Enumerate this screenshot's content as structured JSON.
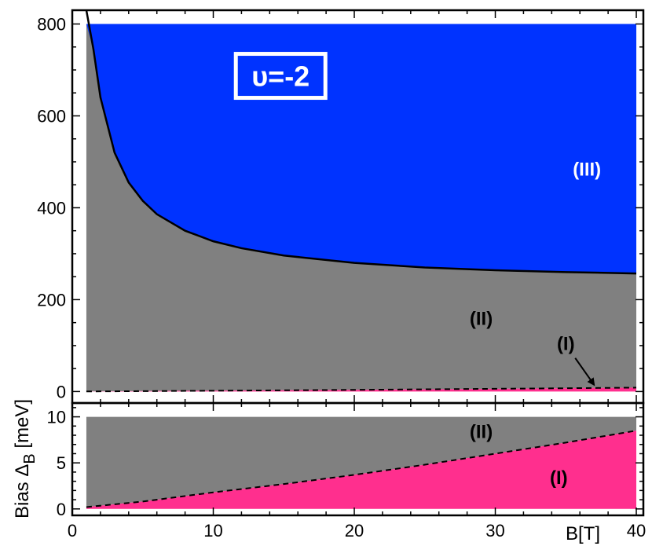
{
  "chart_data": [
    {
      "type": "area",
      "panel": "top",
      "title": "",
      "xlabel": "",
      "ylabel": "",
      "xlim": [
        0,
        40.5
      ],
      "ylim": [
        -25,
        830
      ],
      "x_ticks": [
        0,
        10,
        20,
        30,
        40
      ],
      "y_ticks": [
        0,
        200,
        400,
        600,
        800
      ],
      "y_tick_labels": [
        "0",
        "200",
        "400",
        "600",
        "800"
      ],
      "grid": false,
      "filling_factor_label": "υ=-2",
      "colors": {
        "region_III": "#0033ff",
        "region_II": "#808080",
        "region_I": "#ff2f8e"
      },
      "series": [
        {
          "name": "solid boundary (II)/(III)",
          "style": "solid",
          "x": [
            1,
            1.5,
            2,
            3,
            4,
            5,
            6,
            8,
            10,
            12,
            15,
            20,
            25,
            30,
            35,
            40
          ],
          "y": [
            830,
            745,
            640,
            520,
            455,
            415,
            386,
            350,
            327,
            312,
            296,
            280,
            270,
            264,
            260,
            257
          ]
        },
        {
          "name": "dashed boundary (I)/(II)",
          "style": "dashed",
          "x": [
            1,
            5,
            10,
            15,
            20,
            25,
            30,
            35,
            40
          ],
          "y": [
            0.2,
            0.8,
            1.8,
            2.7,
            3.7,
            4.8,
            6.0,
            7.2,
            8.5
          ]
        }
      ],
      "regions": [
        {
          "label": "(III)",
          "x": 36.5,
          "y": 470
        },
        {
          "label": "(II)",
          "x": 29,
          "y": 145
        },
        {
          "label": "(I)",
          "x": 35,
          "y": 90,
          "arrow_to": {
            "x": 37,
            "y": 8
          }
        }
      ]
    },
    {
      "type": "area",
      "panel": "bottom",
      "title": "",
      "xlabel": "B[T]",
      "ylabel": "Bias Δ_B [meV]",
      "ylabel_parts": {
        "main": "Bias Δ",
        "sub": "B",
        "unit": " [meV]"
      },
      "xlim": [
        0,
        40.5
      ],
      "ylim": [
        -0.7,
        11.5
      ],
      "x_ticks": [
        0,
        10,
        20,
        30,
        40
      ],
      "x_tick_labels": [
        "0",
        "10",
        "20",
        "30",
        "40"
      ],
      "y_ticks": [
        0,
        5,
        10
      ],
      "y_tick_labels": [
        "0",
        "5",
        "10"
      ],
      "grid": false,
      "colors": {
        "region_II": "#808080",
        "region_I": "#ff2f8e"
      },
      "series": [
        {
          "name": "dashed boundary (I)/(II)",
          "style": "dashed",
          "x": [
            1,
            5,
            10,
            15,
            20,
            25,
            30,
            35,
            40
          ],
          "y": [
            0.2,
            0.8,
            1.8,
            2.7,
            3.7,
            4.8,
            6.0,
            7.2,
            8.5
          ]
        }
      ],
      "regions": [
        {
          "label": "(II)",
          "x": 29,
          "y": 7.7
        },
        {
          "label": "(I)",
          "x": 34.5,
          "y": 2.7
        }
      ]
    }
  ]
}
